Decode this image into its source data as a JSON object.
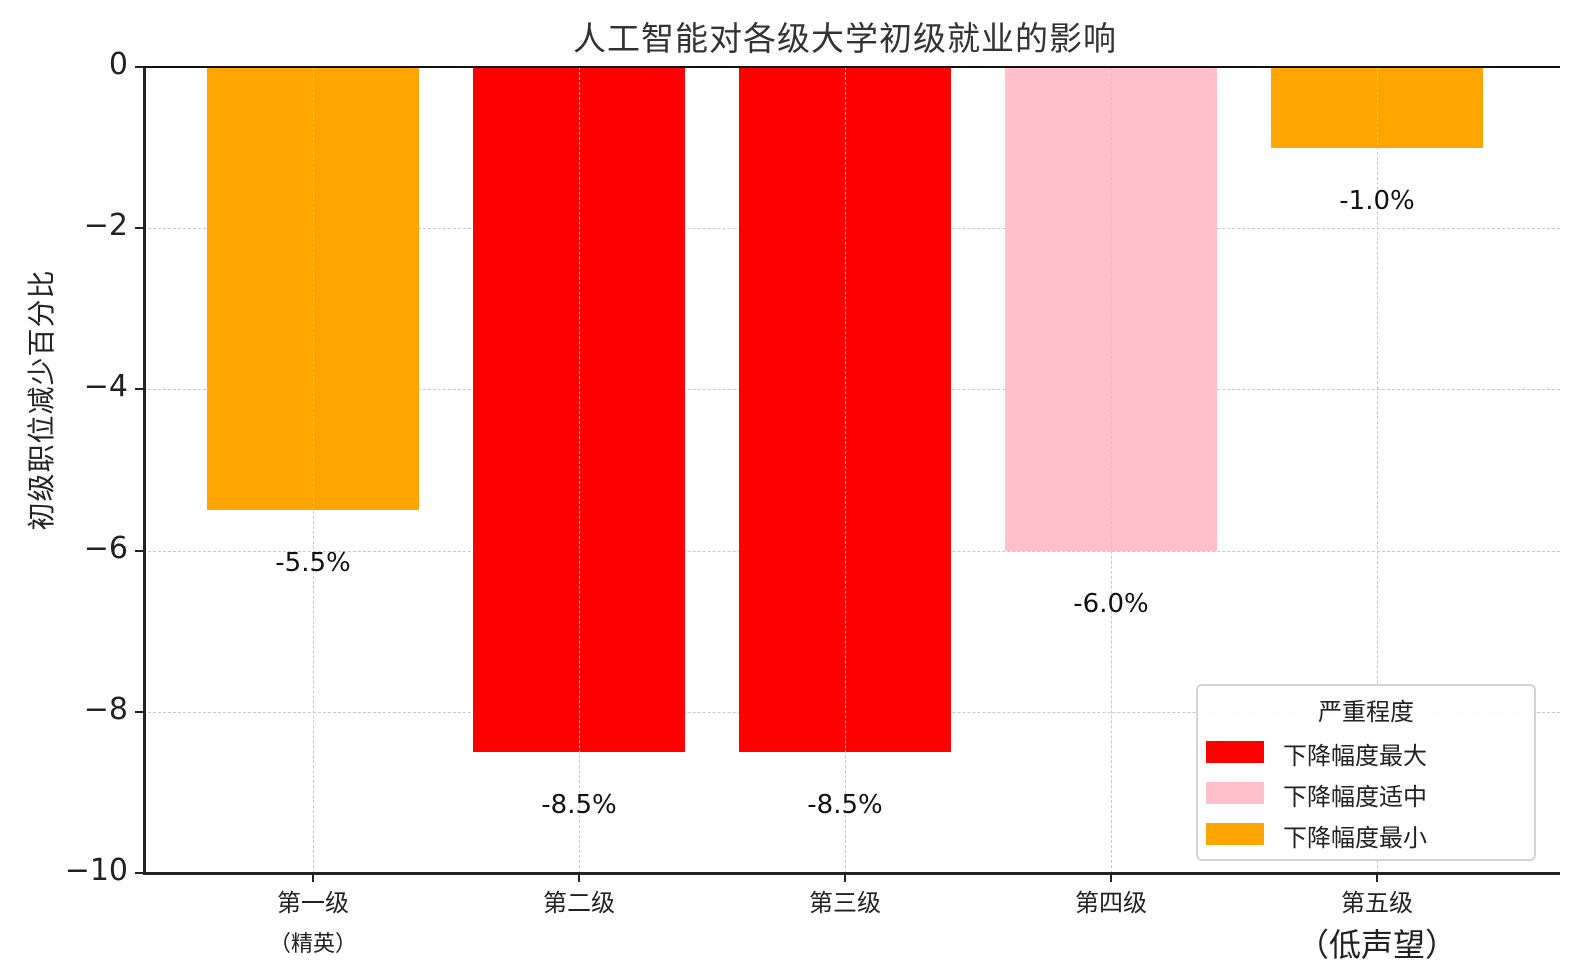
{
  "chart_data": {
    "type": "bar",
    "title": "人工智能对各级大学初级就业的影响",
    "xlabel": "",
    "ylabel": "初级职位减少百分比",
    "categories": [
      "第一级\n（精英）",
      "第二级",
      "第三级",
      "第四级",
      "第五级\n（低声望）"
    ],
    "category_lines": [
      [
        "第一级",
        "（精英）"
      ],
      [
        "第二级",
        ""
      ],
      [
        "第三级",
        ""
      ],
      [
        "第四级",
        ""
      ],
      [
        "第五级",
        "（低声望）"
      ]
    ],
    "values": [
      -5.5,
      -8.5,
      -8.5,
      -6.0,
      -1.0
    ],
    "value_labels": [
      "-5.5%",
      "-8.5%",
      "-8.5%",
      "-6.0%",
      "-1.0%"
    ],
    "bar_colors": [
      "#FFA500",
      "#FF0000",
      "#FF0000",
      "#FFC0CB",
      "#FFA500"
    ],
    "severity": [
      "下降幅度最小",
      "下降幅度最大",
      "下降幅度最大",
      "下降幅度适中",
      "下降幅度最小"
    ],
    "ylim": [
      -10,
      0
    ],
    "yticks": [
      0,
      -2,
      -4,
      -6,
      -8,
      -10
    ],
    "ytick_labels": [
      "0",
      "−2",
      "−4",
      "−6",
      "−8",
      "−10"
    ],
    "grid": true,
    "legend": {
      "title": "严重程度",
      "position": "lower right",
      "entries": [
        {
          "label": "下降幅度最大",
          "color": "#FF0000"
        },
        {
          "label": "下降幅度适中",
          "color": "#FFC0CB"
        },
        {
          "label": "下降幅度最小",
          "color": "#FFA500"
        }
      ]
    }
  }
}
